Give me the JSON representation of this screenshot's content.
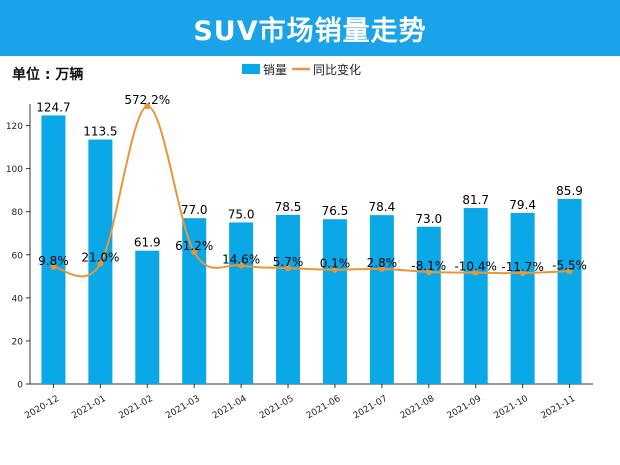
{
  "banner_title": "SUV市场销量走势",
  "unit_label": "单位 : 万辆",
  "colors": {
    "banner": "#1aa3e8",
    "bar": "#0aa8e6",
    "line": "#e8963a"
  },
  "chart_data": {
    "type": "bar",
    "title": "SUV市场销量走势",
    "categories": [
      "2020-12",
      "2021-01",
      "2021-02",
      "2021-03",
      "2021-04",
      "2021-05",
      "2021-06",
      "2021-07",
      "2021-08",
      "2021-09",
      "2021-10",
      "2021-11"
    ],
    "series": [
      {
        "name": "销量",
        "type": "bar",
        "axis": "left",
        "values": [
          124.7,
          113.5,
          61.9,
          77.0,
          75.0,
          78.5,
          76.5,
          78.4,
          73.0,
          81.7,
          79.4,
          85.9
        ],
        "labels": [
          "124.7",
          "113.5",
          "61.9",
          "77.0",
          "75.0",
          "78.5",
          "76.5",
          "78.4",
          "73.0",
          "81.7",
          "79.4",
          "85.9"
        ]
      },
      {
        "name": "同比变化",
        "type": "line",
        "axis": "right",
        "smooth": true,
        "values": [
          9.8,
          21.0,
          572.2,
          61.2,
          14.6,
          5.7,
          0.1,
          2.8,
          -8.1,
          -10.4,
          -11.7,
          -5.5
        ],
        "labels": [
          "9.8%",
          "21.0%",
          "572.2%",
          "61.2%",
          "14.6%",
          "5.7%",
          "0.1%",
          "2.8%",
          "-8.1%",
          "-10.4%",
          "-11.7%",
          "-5.5%"
        ]
      }
    ],
    "ylim": [
      0,
      130
    ],
    "yticks": [
      "0",
      "20",
      "40",
      "60",
      "80",
      "100",
      "120"
    ],
    "y2lim": [
      -400,
      580
    ],
    "legend": "top-center",
    "xlabel": "",
    "ylabel": ""
  }
}
